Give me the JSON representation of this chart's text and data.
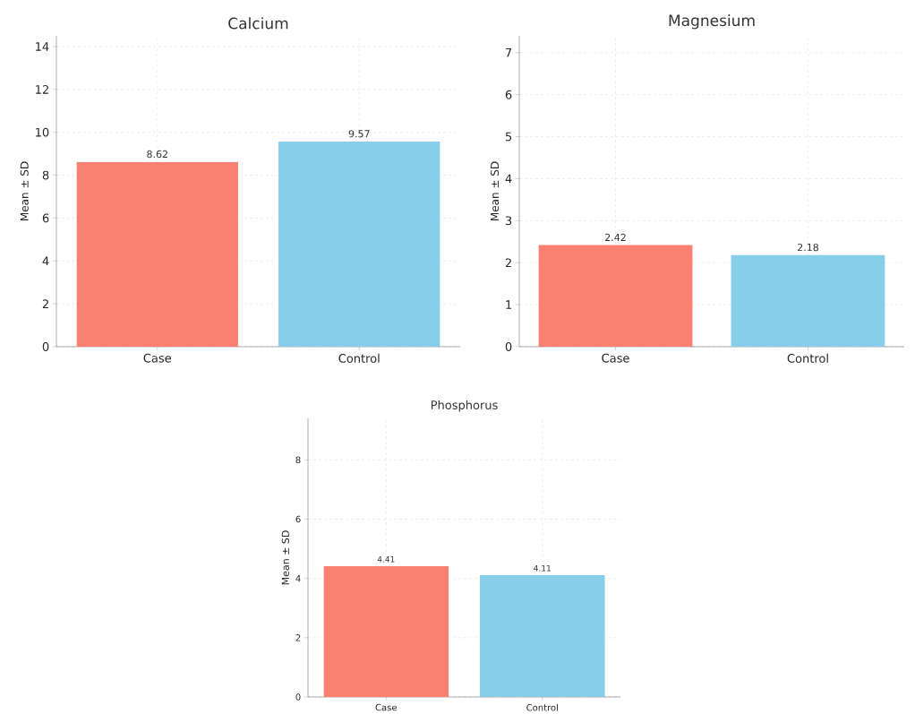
{
  "chart_data": [
    {
      "type": "bar",
      "title": "Calcium",
      "ylabel": "Mean ± SD",
      "categories": [
        "Case",
        "Control"
      ],
      "values": [
        8.62,
        9.57
      ],
      "colors": [
        "#fa8072",
        "#87ceeb"
      ],
      "ylim": [
        0,
        14.5
      ],
      "yticks": [
        0,
        2,
        4,
        6,
        8,
        10,
        12,
        14
      ],
      "grid": true,
      "data_labels": true
    },
    {
      "type": "bar",
      "title": "Magnesium",
      "ylabel": "Mean ± SD",
      "categories": [
        "Case",
        "Control"
      ],
      "values": [
        2.42,
        2.18
      ],
      "colors": [
        "#fa8072",
        "#87ceeb"
      ],
      "ylim": [
        0,
        7.4
      ],
      "yticks": [
        0,
        1,
        2,
        3,
        4,
        5,
        6,
        7
      ],
      "grid": true,
      "data_labels": true
    },
    {
      "type": "bar",
      "title": "Phosphorus",
      "ylabel": "Mean ± SD",
      "categories": [
        "Case",
        "Control"
      ],
      "values": [
        4.41,
        4.11
      ],
      "colors": [
        "#fa8072",
        "#87ceeb"
      ],
      "ylim": [
        0,
        9.4
      ],
      "yticks": [
        0,
        2,
        4,
        6,
        8
      ],
      "grid": true,
      "data_labels": true
    }
  ]
}
